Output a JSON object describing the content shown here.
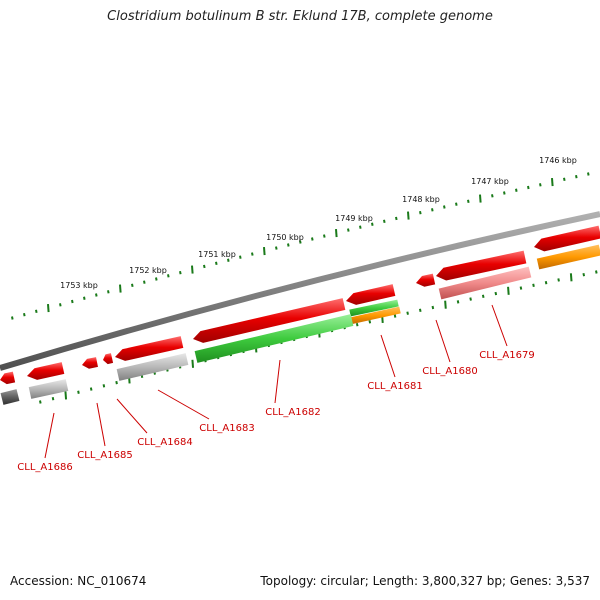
{
  "title": "Clostridium botulinum B str. Eklund 17B, complete genome",
  "footer": {
    "accession": "Accession: NC_010674",
    "topology": "Topology: circular; Length: 3,800,327 bp; Genes: 3,537"
  },
  "ruler_labels": [
    "1746 kbp",
    "1747 kbp",
    "1748 kbp",
    "1749 kbp",
    "1750 kbp",
    "1751 kbp",
    "1752 kbp",
    "1753 kbp"
  ],
  "gene_labels": [
    "CLL_A1679",
    "CLL_A1680",
    "CLL_A1681",
    "CLL_A1682",
    "CLL_A1683",
    "CLL_A1684",
    "CLL_A1685",
    "CLL_A1686"
  ],
  "colors": {
    "ruler": "#1a7a1a",
    "backbone": "#808080",
    "gene_red": "#e80000",
    "cds_green": "#3ecb3e",
    "cds_orange": "#ff9900",
    "cds_pink": "#f08a8a",
    "cds_gray": "#b8b8b8",
    "cds_darkgray": "#606060",
    "label_red": "#cc0000"
  }
}
